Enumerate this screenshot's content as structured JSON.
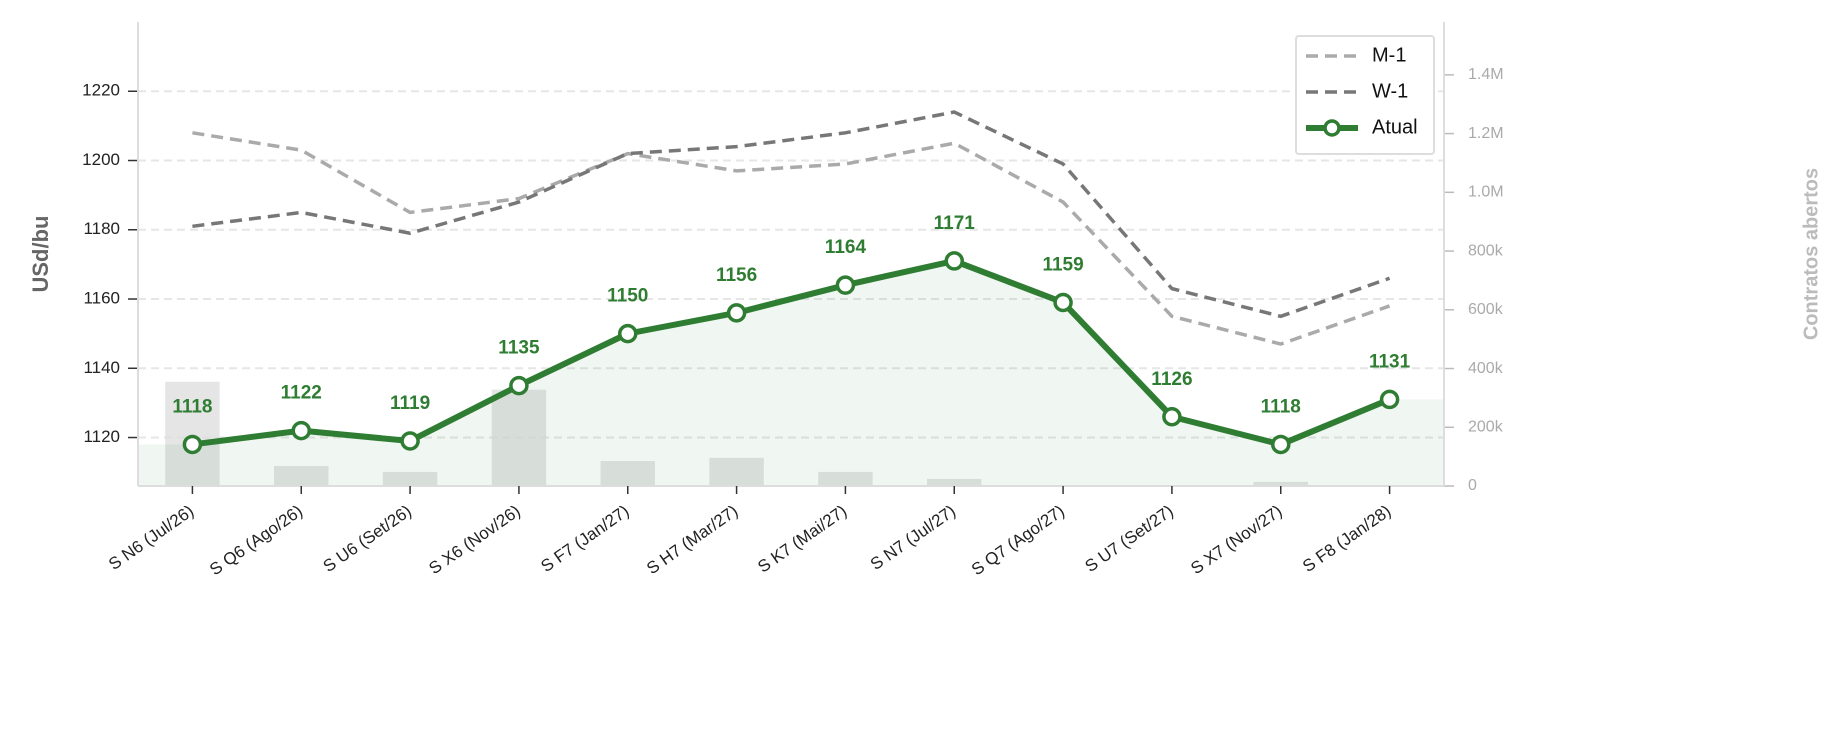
{
  "chart_data": {
    "type": "line",
    "categories": [
      "S N6 (Jul/26)",
      "S Q6 (Ago/26)",
      "S U6 (Set/26)",
      "S X6 (Nov/26)",
      "S F7 (Jan/27)",
      "S H7 (Mar/27)",
      "S K7 (Mai/27)",
      "S N7 (Jul/27)",
      "S Q7 (Ago/27)",
      "S U7 (Set/27)",
      "S X7 (Nov/27)",
      "S F8 (Jan/28)"
    ],
    "ylabel": "USd/bu",
    "y2label": "Contratos abertos",
    "ylim": [
      1106,
      1240
    ],
    "yticks": [
      1120,
      1140,
      1160,
      1180,
      1200,
      1220
    ],
    "y2lim": [
      0,
      1580000
    ],
    "y2ticks": [
      {
        "value": 0,
        "label": "0"
      },
      {
        "value": 200000,
        "label": "200k"
      },
      {
        "value": 400000,
        "label": "400k"
      },
      {
        "value": 600000,
        "label": "600k"
      },
      {
        "value": 800000,
        "label": "800k"
      },
      {
        "value": 1000000,
        "label": "1.0M"
      },
      {
        "value": 1200000,
        "label": "1.2M"
      },
      {
        "value": 1400000,
        "label": "1.4M"
      }
    ],
    "grid": true,
    "legend": "upper right",
    "bars": {
      "color": "#dcdcdc",
      "axis": "y2",
      "values": [
        355000,
        68000,
        48000,
        328000,
        85000,
        96000,
        48000,
        24000,
        0,
        0,
        14000,
        0
      ]
    },
    "series": [
      {
        "name": "M-1",
        "color": "#aaaaaa",
        "style": "dashed",
        "values": [
          1208,
          1203,
          1185,
          1189,
          1202,
          1197,
          1199,
          1205,
          1188,
          1155,
          1147,
          1158
        ]
      },
      {
        "name": "W-1",
        "color": "#777777",
        "style": "dashed",
        "values": [
          1181,
          1185,
          1179,
          1188,
          1202,
          1204,
          1208,
          1214,
          1199,
          1163,
          1155,
          1166
        ]
      },
      {
        "name": "Atual",
        "color": "#2e7d32",
        "style": "solid",
        "markers": true,
        "data_labels": true,
        "values": [
          1118,
          1122,
          1119,
          1135,
          1150,
          1156,
          1164,
          1171,
          1159,
          1126,
          1118,
          1131
        ]
      }
    ]
  }
}
